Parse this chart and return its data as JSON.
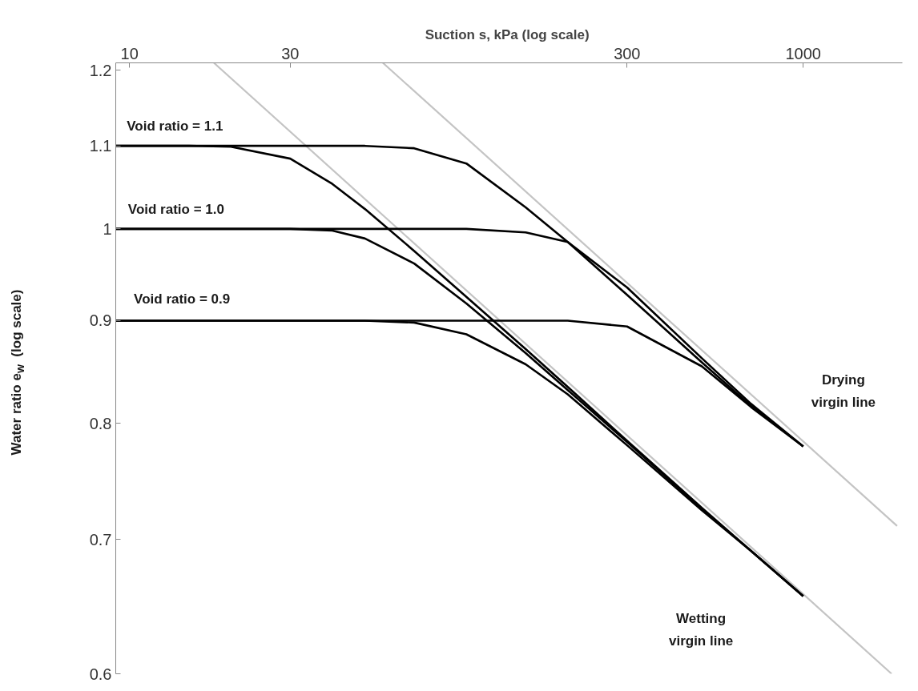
{
  "chart_data": {
    "type": "line",
    "xlabel": "Suction s, kPa  (log scale)",
    "ylabel": "Water ratio e$_{w}$  (log scale)",
    "log": "xy",
    "xlim": [
      9.1,
      1970
    ],
    "xticks": [
      10,
      30,
      300,
      1000
    ],
    "ylim": [
      0.6,
      1.21
    ],
    "yticks": [
      0.6,
      0.7,
      0.8,
      0.9,
      1,
      1.1,
      1.2
    ],
    "marker": "none",
    "line_style": "solid",
    "series": [
      {
        "color": "#000000",
        "x": [
          9.1,
          15,
          20,
          30,
          40,
          50,
          70,
          100,
          150,
          200,
          300,
          500,
          700,
          1000
        ],
        "values": [
          1.1,
          1.1,
          1.099,
          1.084,
          1.053,
          1.023,
          0.975,
          0.925,
          0.871,
          0.834,
          0.784,
          0.726,
          0.691,
          0.656
        ]
      },
      {
        "color": "#000000",
        "x": [
          9.1,
          15,
          20,
          30,
          40,
          50,
          70,
          100,
          150,
          200,
          300,
          500,
          700,
          1000
        ],
        "values": [
          1.0,
          1.0,
          1.0,
          1.0,
          0.998,
          0.989,
          0.961,
          0.918,
          0.867,
          0.831,
          0.783,
          0.725,
          0.691,
          0.656
        ]
      },
      {
        "color": "#000000",
        "x": [
          9.1,
          15,
          20,
          30,
          40,
          50,
          70,
          100,
          150,
          200,
          300,
          500,
          700,
          1000
        ],
        "values": [
          0.9,
          0.9,
          0.9,
          0.9,
          0.9,
          0.9,
          0.898,
          0.886,
          0.856,
          0.827,
          0.78,
          0.724,
          0.691,
          0.656
        ]
      },
      {
        "color": "#000000",
        "x": [
          9.1,
          20,
          50,
          70,
          100,
          150,
          200,
          300,
          500,
          700,
          1000
        ],
        "values": [
          1.1,
          1.1,
          1.1,
          1.097,
          1.078,
          1.025,
          0.985,
          0.927,
          0.858,
          0.816,
          0.779
        ]
      },
      {
        "color": "#000000",
        "x": [
          9.1,
          50,
          100,
          150,
          200,
          300,
          500,
          700,
          1000
        ],
        "values": [
          1.0,
          1.0,
          1.0,
          0.996,
          0.985,
          0.935,
          0.862,
          0.818,
          0.779
        ]
      },
      {
        "color": "#000000",
        "x": [
          9.1,
          100,
          200,
          300,
          500,
          700,
          1000
        ],
        "values": [
          0.9,
          0.9,
          0.9,
          0.894,
          0.854,
          0.815,
          0.779
        ]
      },
      {
        "color": "#c4c4c4",
        "x": [
          17.8,
          1830
        ],
        "values": [
          1.21,
          0.6
        ]
      },
      {
        "color": "#c4c4c4",
        "x": [
          56.5,
          1900
        ],
        "values": [
          1.21,
          0.711
        ]
      }
    ],
    "annotations": [
      "Void ratio = 1.1",
      "Void ratio = 1.0",
      "Void ratio = 0.9",
      "Drying\nvirgin line",
      "Wetting\nvirgin line"
    ]
  }
}
